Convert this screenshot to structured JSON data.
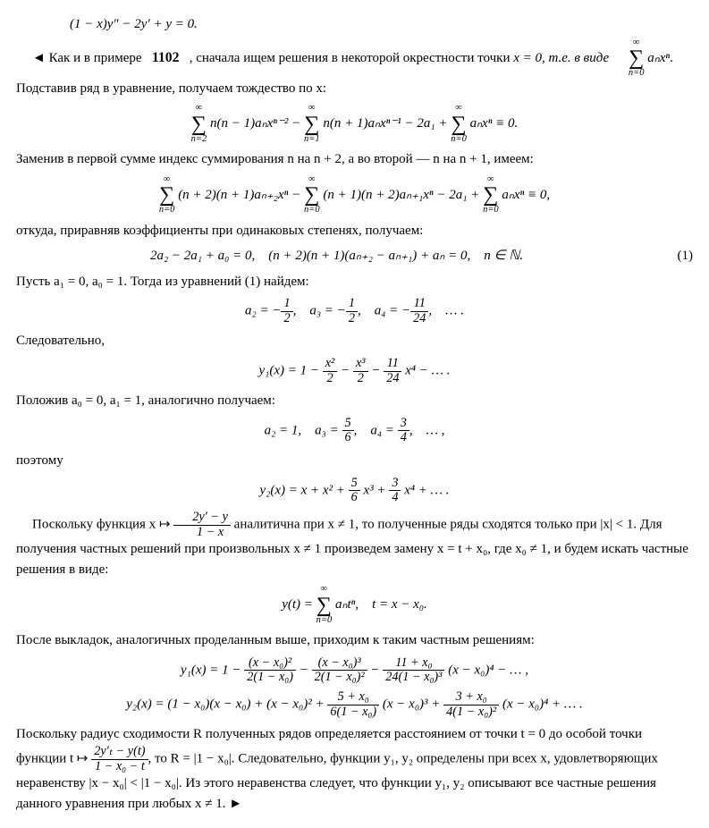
{
  "equation_top": "(1 − x)y″ − 2y′ + y = 0.",
  "p1a": "◄ Как и в примере",
  "ref": "1102",
  "p1b": ", сначала ищем решения в некоторой окрестности точки",
  "p2a": "x = 0, т.е. в виде",
  "p2b": ". Подставив ряд в уравнение, получаем тождество по x:",
  "sum_series": {
    "top": "∞",
    "bot": "n=0",
    "term": "aₙxⁿ"
  },
  "eq1_s1": {
    "top": "∞",
    "bot": "n=2",
    "term": "n(n − 1)aₙxⁿ⁻²"
  },
  "eq1_s2": {
    "top": "∞",
    "bot": "n=1",
    "term": "n(n + 1)aₙxⁿ⁻¹"
  },
  "eq1_mid": "− 2a₁ +",
  "eq1_s3": {
    "top": "∞",
    "bot": "n=0",
    "term": "aₙxⁿ"
  },
  "eq1_end": "≡ 0.",
  "p3": "Заменив в первой сумме индекс суммирования n на n + 2, а во второй — n на n + 1, имеем:",
  "eq2_s1": {
    "top": "∞",
    "bot": "n=0",
    "term": "(n + 2)(n + 1)aₙ₊₂xⁿ"
  },
  "eq2_s2": {
    "top": "∞",
    "bot": "n=0",
    "term": "(n + 1)(n + 2)aₙ₊₁xⁿ"
  },
  "eq2_mid": "− 2a₁ +",
  "eq2_s3": {
    "top": "∞",
    "bot": "n=0",
    "term": "aₙxⁿ"
  },
  "eq2_end": "≡ 0,",
  "p4": "откуда, приравняв коэффициенты при одинаковых степенях, получаем:",
  "eq3": "2a₂ − 2a₁ + a₀ = 0, (n + 2)(n + 1)(aₙ₊₂ − aₙ₊₁) + aₙ = 0, n ∈ ℕ.",
  "eq3_num": "(1)",
  "p5": "Пусть a₁ = 0, a₀ = 1. Тогда из уравнений (1) найдем:",
  "eq4_a": "a₂ = −",
  "eq4_f1": {
    "num": "1",
    "den": "2"
  },
  "eq4_b": ", a₃ = −",
  "eq4_f2": {
    "num": "1",
    "den": "2"
  },
  "eq4_c": ", a₄ = −",
  "eq4_f3": {
    "num": "11",
    "den": "24"
  },
  "eq4_d": ", … .",
  "p6": "Следовательно,",
  "eq5_a": "y₁(x) = 1 −",
  "eq5_f1": {
    "num": "x²",
    "den": "2"
  },
  "eq5_b": "−",
  "eq5_f2": {
    "num": "x³",
    "den": "2"
  },
  "eq5_c": "−",
  "eq5_f3": {
    "num": "11",
    "den": "24"
  },
  "eq5_d": "x⁴ − … .",
  "p7": "Положив a₀ = 0, a₁ = 1, аналогично получаем:",
  "eq6_a": "a₂ = 1, a₃ =",
  "eq6_f1": {
    "num": "5",
    "den": "6"
  },
  "eq6_b": ", a₄ =",
  "eq6_f2": {
    "num": "3",
    "den": "4"
  },
  "eq6_c": ", … ,",
  "p8": "поэтому",
  "eq7_a": "y₂(x) = x + x² +",
  "eq7_f1": {
    "num": "5",
    "den": "6"
  },
  "eq7_b": "x³ +",
  "eq7_f2": {
    "num": "3",
    "den": "4"
  },
  "eq7_c": "x⁴ + … .",
  "p9a": "Поскольку функция x ↦",
  "p9_f": {
    "num": "2y′ − y",
    "den": "1 − x"
  },
  "p9b": "аналитична при x ≠ 1, то полученные ряды сходятся только при |x| < 1. Для получения частных решений при произвольных x ≠ 1 произведем замену x = t + x₀, где x₀ ≠ 1, и будем искать частные решения в виде:",
  "eq8_a": "y(t) =",
  "eq8_sum": {
    "top": "∞",
    "bot": "n=0",
    "term": "aₙtⁿ"
  },
  "eq8_b": ", t = x − x₀.",
  "p10": "После выкладок, аналогичных проделанным выше, приходим к таким частным решениям:",
  "eq9_a": "y₁(x) = 1 −",
  "eq9_f1": {
    "num": "(x − x₀)²",
    "den": "2(1 − x₀)"
  },
  "eq9_b": "−",
  "eq9_f2": {
    "num": "(x − x₀)³",
    "den": "2(1 − x₀)²"
  },
  "eq9_c": "−",
  "eq9_f3": {
    "num": "11 + x₀",
    "den": "24(1 − x₀)³"
  },
  "eq9_d": "(x − x₀)⁴ − … ,",
  "eq10_a": "y₂(x) = (1 − x₀)(x − x₀) + (x − x₀)² +",
  "eq10_f1": {
    "num": "5 + x₀",
    "den": "6(1 − x₀)"
  },
  "eq10_b": "(x − x₀)³ +",
  "eq10_f2": {
    "num": "3 + x₀",
    "den": "4(1 − x₀)²"
  },
  "eq10_c": "(x − x₀)⁴ + … .",
  "p11a": "Поскольку радиус сходимости R полученных рядов определяется расстоянием от точки t = 0 до особой точки функции t ↦",
  "p11_f": {
    "num": "2y′ₜ − y(t)",
    "den": "1 − x₀ − t"
  },
  "p11b": ", то R = |1 − x₀|. Следовательно, функции y₁, y₂ определены при всех x, удовлетворяющих неравенству |x − x₀| < |1 − x₀|. Из этого неравенства следует, что функции y₁, y₂ описывают все частные решения данного уравнения при любых x ≠ 1. ►"
}
